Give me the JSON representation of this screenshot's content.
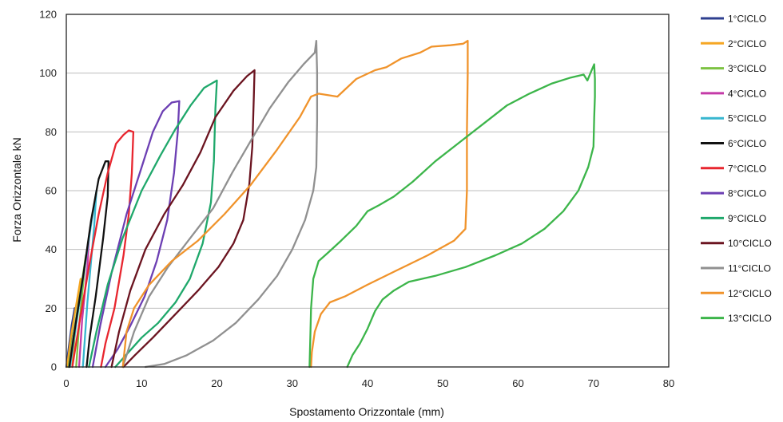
{
  "chart_data": {
    "type": "line",
    "title": "",
    "xlabel": "Spostamento Orizzontale (mm)",
    "ylabel": "Forza Orizzontale kN",
    "xlim": [
      0,
      80
    ],
    "ylim": [
      0,
      120
    ],
    "xticks": [
      "0",
      "10",
      "20",
      "30",
      "40",
      "50",
      "60",
      "70",
      "80"
    ],
    "yticks": [
      "0",
      "20",
      "40",
      "60",
      "80",
      "100",
      "120"
    ],
    "grid": "horizontal",
    "legend": "right",
    "series": [
      {
        "name": "1°CICLO",
        "color": "#2e3f8f",
        "points": [
          [
            0,
            0
          ],
          [
            0.3,
            6
          ],
          [
            0.7,
            14
          ],
          [
            1.1,
            20
          ],
          [
            0.8,
            14
          ],
          [
            0.5,
            6
          ],
          [
            0.3,
            0
          ]
        ]
      },
      {
        "name": "2°CICLO",
        "color": "#f5a623",
        "points": [
          [
            0.1,
            0
          ],
          [
            0.6,
            10
          ],
          [
            1.3,
            21
          ],
          [
            1.9,
            30
          ],
          [
            1.6,
            22
          ],
          [
            1.1,
            10
          ],
          [
            0.8,
            0
          ]
        ]
      },
      {
        "name": "3°CICLO",
        "color": "#7dc242",
        "points": [
          [
            0.3,
            0
          ],
          [
            1,
            12
          ],
          [
            1.9,
            26
          ],
          [
            2.6,
            38
          ],
          [
            2.3,
            30
          ],
          [
            1.7,
            14
          ],
          [
            1.3,
            0
          ]
        ]
      },
      {
        "name": "4°CICLO",
        "color": "#c43aa8",
        "points": [
          [
            0.4,
            0
          ],
          [
            1.2,
            14
          ],
          [
            2.2,
            30
          ],
          [
            3,
            44
          ],
          [
            2.8,
            34
          ],
          [
            2.1,
            16
          ],
          [
            1.7,
            0
          ]
        ]
      },
      {
        "name": "5°CICLO",
        "color": "#37b6cf",
        "points": [
          [
            0.5,
            0
          ],
          [
            1.4,
            16
          ],
          [
            2.5,
            35
          ],
          [
            3.5,
            52
          ],
          [
            4,
            60
          ],
          [
            3.7,
            48
          ],
          [
            2.8,
            22
          ],
          [
            2.2,
            0
          ]
        ]
      },
      {
        "name": "6°CICLO",
        "color": "#111111",
        "points": [
          [
            0.4,
            0
          ],
          [
            1.2,
            14
          ],
          [
            2.3,
            32
          ],
          [
            3.3,
            50
          ],
          [
            4.3,
            64
          ],
          [
            5.2,
            70
          ],
          [
            5.6,
            70
          ],
          [
            5.5,
            58
          ],
          [
            4.9,
            44
          ],
          [
            3.9,
            24
          ],
          [
            3.1,
            10
          ],
          [
            2.7,
            0
          ]
        ]
      },
      {
        "name": "7°CICLO",
        "color": "#e8262f",
        "points": [
          [
            0.8,
            0
          ],
          [
            1.8,
            16
          ],
          [
            3,
            34
          ],
          [
            4.3,
            52
          ],
          [
            5.5,
            66
          ],
          [
            6.6,
            76
          ],
          [
            7.6,
            79
          ],
          [
            8.3,
            80.5
          ],
          [
            8.9,
            80
          ],
          [
            8.7,
            66
          ],
          [
            8.3,
            52
          ],
          [
            7.6,
            38
          ],
          [
            6.4,
            20
          ],
          [
            5.2,
            8
          ],
          [
            4.6,
            0
          ]
        ]
      },
      {
        "name": "8°CICLO",
        "color": "#6c3fb3",
        "points": [
          [
            3.5,
            0
          ],
          [
            4.5,
            14
          ],
          [
            6,
            32
          ],
          [
            8,
            52
          ],
          [
            10,
            68
          ],
          [
            11.5,
            80
          ],
          [
            12.8,
            87
          ],
          [
            14,
            90
          ],
          [
            15,
            90.5
          ],
          [
            14.8,
            80
          ],
          [
            14.3,
            66
          ],
          [
            13.4,
            50
          ],
          [
            12,
            36
          ],
          [
            10.4,
            24
          ],
          [
            8.5,
            14
          ],
          [
            6.8,
            6
          ],
          [
            5.2,
            0
          ]
        ]
      },
      {
        "name": "9°CICLO",
        "color": "#1fa86b",
        "points": [
          [
            3,
            0
          ],
          [
            4,
            12
          ],
          [
            5.5,
            28
          ],
          [
            7.5,
            44
          ],
          [
            10,
            60
          ],
          [
            12.5,
            72
          ],
          [
            14.5,
            81
          ],
          [
            16.5,
            89
          ],
          [
            18.3,
            95
          ],
          [
            20,
            97.5
          ],
          [
            19.8,
            88
          ],
          [
            19.6,
            70
          ],
          [
            19.2,
            56
          ],
          [
            18.1,
            42
          ],
          [
            16.4,
            30
          ],
          [
            14.5,
            22
          ],
          [
            12.2,
            15
          ],
          [
            10,
            10
          ],
          [
            7.9,
            4
          ],
          [
            6.5,
            0
          ]
        ]
      },
      {
        "name": "10°CICLO",
        "color": "#6b1420",
        "points": [
          [
            6,
            0
          ],
          [
            7,
            12
          ],
          [
            8.5,
            26
          ],
          [
            10.5,
            40
          ],
          [
            13,
            52
          ],
          [
            15.5,
            62
          ],
          [
            17.8,
            73
          ],
          [
            19.8,
            85
          ],
          [
            22.2,
            94
          ],
          [
            24,
            99
          ],
          [
            25,
            101
          ],
          [
            24.9,
            92
          ],
          [
            24.7,
            75
          ],
          [
            24.3,
            62
          ],
          [
            23.5,
            50
          ],
          [
            22.2,
            42
          ],
          [
            20.2,
            34
          ],
          [
            17.5,
            26
          ],
          [
            14.5,
            18
          ],
          [
            11.5,
            10
          ],
          [
            9.1,
            4
          ],
          [
            7.6,
            0
          ]
        ]
      },
      {
        "name": "11°CICLO",
        "color": "#909090",
        "points": [
          [
            7.5,
            0
          ],
          [
            9,
            12
          ],
          [
            11,
            24
          ],
          [
            13.5,
            34
          ],
          [
            16.5,
            44
          ],
          [
            19.5,
            54
          ],
          [
            22,
            66
          ],
          [
            24.5,
            77
          ],
          [
            27,
            88
          ],
          [
            29.5,
            97
          ],
          [
            31.5,
            103
          ],
          [
            33,
            107
          ],
          [
            33.2,
            111
          ],
          [
            33.3,
            100
          ],
          [
            33.3,
            84
          ],
          [
            33.2,
            68
          ],
          [
            32.8,
            60
          ],
          [
            31.7,
            50
          ],
          [
            30,
            40
          ],
          [
            28,
            31
          ],
          [
            25.5,
            23
          ],
          [
            22.5,
            15
          ],
          [
            19.5,
            9
          ],
          [
            16,
            4
          ],
          [
            13,
            1
          ],
          [
            10.5,
            0
          ]
        ]
      },
      {
        "name": "12°CICLO",
        "color": "#f0932b",
        "points": [
          [
            7.5,
            0
          ],
          [
            8,
            12
          ],
          [
            9,
            20
          ],
          [
            11,
            28
          ],
          [
            14,
            36
          ],
          [
            17.5,
            43
          ],
          [
            21,
            52
          ],
          [
            24.5,
            62
          ],
          [
            28,
            74
          ],
          [
            31,
            85
          ],
          [
            32.5,
            92
          ],
          [
            33.5,
            93
          ],
          [
            36,
            92
          ],
          [
            38.5,
            98
          ],
          [
            41,
            101
          ],
          [
            42.5,
            102
          ],
          [
            44.5,
            105
          ],
          [
            47,
            107
          ],
          [
            48.5,
            109
          ],
          [
            51,
            109.5
          ],
          [
            52.7,
            110
          ],
          [
            53.3,
            111
          ],
          [
            53.3,
            100
          ],
          [
            53.2,
            80
          ],
          [
            53.2,
            60
          ],
          [
            53,
            47
          ],
          [
            51.5,
            43
          ],
          [
            48,
            38
          ],
          [
            44,
            33
          ],
          [
            40,
            28
          ],
          [
            37,
            24
          ],
          [
            35,
            22
          ],
          [
            33.8,
            18
          ],
          [
            33,
            12
          ],
          [
            32.6,
            5
          ],
          [
            32.5,
            0
          ]
        ]
      },
      {
        "name": "13°CICLO",
        "color": "#3cb54a",
        "points": [
          [
            32.3,
            0
          ],
          [
            32.4,
            10
          ],
          [
            32.5,
            20
          ],
          [
            32.8,
            30
          ],
          [
            33.5,
            36
          ],
          [
            34.8,
            39
          ],
          [
            36.5,
            43
          ],
          [
            38.5,
            48
          ],
          [
            40,
            53
          ],
          [
            41.5,
            55
          ],
          [
            43.5,
            58
          ],
          [
            46,
            63
          ],
          [
            49,
            70
          ],
          [
            52.5,
            77
          ],
          [
            55.5,
            83
          ],
          [
            58.5,
            89
          ],
          [
            61.5,
            93
          ],
          [
            64.5,
            96.5
          ],
          [
            67,
            98.5
          ],
          [
            68.7,
            99.5
          ],
          [
            69.2,
            97.5
          ],
          [
            69.6,
            100
          ],
          [
            70.1,
            103
          ],
          [
            70.2,
            98
          ],
          [
            70.2,
            92
          ],
          [
            70.1,
            85
          ],
          [
            70,
            75
          ],
          [
            69.3,
            68
          ],
          [
            68,
            60
          ],
          [
            66,
            53
          ],
          [
            63.5,
            47
          ],
          [
            60.5,
            42
          ],
          [
            57,
            38
          ],
          [
            53,
            34
          ],
          [
            49,
            31
          ],
          [
            45.5,
            29
          ],
          [
            43.5,
            26
          ],
          [
            42,
            23
          ],
          [
            41,
            19
          ],
          [
            40,
            13
          ],
          [
            39,
            8
          ],
          [
            38,
            4
          ],
          [
            37.3,
            0
          ]
        ]
      }
    ]
  }
}
